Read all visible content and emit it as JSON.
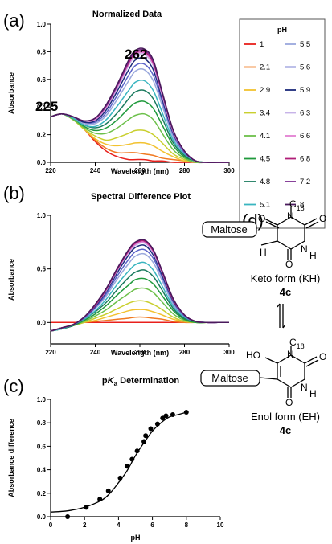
{
  "panels": {
    "a": "(a)",
    "b": "(b)",
    "c": "(c)",
    "d": "(d)"
  },
  "chart_data": [
    {
      "type": "line",
      "title": "Normalized Data",
      "xlabel": "Wavelength (nm)",
      "ylabel": "Absorbance",
      "xlim": [
        220,
        300
      ],
      "ylim": [
        0,
        1.0
      ],
      "xticks": [
        "220",
        "240",
        "260",
        "280",
        "300"
      ],
      "yticks": [
        "0.0",
        "0.2",
        "0.4",
        "0.6",
        "0.8",
        "1.0"
      ],
      "annotations": [
        {
          "text": "225",
          "color": "#e8201c"
        },
        {
          "text": "262",
          "color": "#8b3fbf"
        }
      ],
      "legend_title": "pH",
      "legend_placement": "right",
      "wavelength_nm": [
        220,
        225,
        230,
        235,
        240,
        245,
        250,
        255,
        258,
        262,
        266,
        270,
        275,
        280,
        285,
        290,
        295,
        300
      ],
      "series": [
        {
          "name": "1",
          "color": "#e8201c",
          "values": [
            0.33,
            0.35,
            0.31,
            0.24,
            0.15,
            0.08,
            0.04,
            0.02,
            0.02,
            0.02,
            0.01,
            0.01,
            0.0,
            0.0,
            0.0,
            0.0,
            0.0,
            0.0
          ]
        },
        {
          "name": "2.1",
          "color": "#f07a22",
          "values": [
            0.33,
            0.35,
            0.31,
            0.24,
            0.16,
            0.1,
            0.07,
            0.07,
            0.07,
            0.06,
            0.05,
            0.03,
            0.02,
            0.01,
            0.0,
            0.0,
            0.0,
            0.0
          ]
        },
        {
          "name": "2.9",
          "color": "#f2c230",
          "values": [
            0.33,
            0.35,
            0.31,
            0.24,
            0.17,
            0.13,
            0.12,
            0.13,
            0.14,
            0.14,
            0.12,
            0.08,
            0.04,
            0.01,
            0.0,
            0.0,
            0.0,
            0.0
          ]
        },
        {
          "name": "3.4",
          "color": "#c9cf2e",
          "values": [
            0.33,
            0.35,
            0.31,
            0.24,
            0.19,
            0.16,
            0.18,
            0.21,
            0.23,
            0.23,
            0.2,
            0.14,
            0.06,
            0.02,
            0.0,
            0.0,
            0.0,
            0.0
          ]
        },
        {
          "name": "4.1",
          "color": "#6cc04a",
          "values": [
            0.33,
            0.35,
            0.31,
            0.25,
            0.21,
            0.21,
            0.25,
            0.31,
            0.34,
            0.35,
            0.31,
            0.21,
            0.09,
            0.03,
            0.0,
            0.0,
            0.0,
            0.0
          ]
        },
        {
          "name": "4.5",
          "color": "#1f9a3c",
          "values": [
            0.33,
            0.35,
            0.32,
            0.26,
            0.23,
            0.25,
            0.31,
            0.39,
            0.43,
            0.44,
            0.39,
            0.27,
            0.12,
            0.04,
            0.01,
            0.0,
            0.0,
            0.0
          ]
        },
        {
          "name": "4.8",
          "color": "#1a7a5e",
          "values": [
            0.33,
            0.35,
            0.32,
            0.27,
            0.25,
            0.28,
            0.36,
            0.46,
            0.51,
            0.52,
            0.46,
            0.32,
            0.14,
            0.05,
            0.01,
            0.0,
            0.0,
            0.0
          ]
        },
        {
          "name": "5.1",
          "color": "#3ab5c0",
          "values": [
            0.33,
            0.35,
            0.32,
            0.27,
            0.26,
            0.31,
            0.41,
            0.52,
            0.58,
            0.59,
            0.52,
            0.36,
            0.16,
            0.06,
            0.01,
            0.0,
            0.0,
            0.0
          ]
        },
        {
          "name": "5.5",
          "color": "#9aa8dc",
          "values": [
            0.33,
            0.35,
            0.33,
            0.28,
            0.28,
            0.34,
            0.46,
            0.59,
            0.66,
            0.67,
            0.59,
            0.41,
            0.18,
            0.07,
            0.01,
            0.0,
            0.0,
            0.0
          ]
        },
        {
          "name": "5.6",
          "color": "#5b63c9",
          "values": [
            0.33,
            0.35,
            0.33,
            0.29,
            0.29,
            0.36,
            0.49,
            0.63,
            0.7,
            0.71,
            0.63,
            0.44,
            0.2,
            0.07,
            0.01,
            0.0,
            0.0,
            0.0
          ]
        },
        {
          "name": "5.9",
          "color": "#1c2a7a",
          "values": [
            0.33,
            0.35,
            0.33,
            0.29,
            0.3,
            0.38,
            0.52,
            0.67,
            0.74,
            0.75,
            0.67,
            0.46,
            0.21,
            0.08,
            0.01,
            0.0,
            0.0,
            0.0
          ]
        },
        {
          "name": "6.3",
          "color": "#c7b3e8",
          "values": [
            0.33,
            0.35,
            0.33,
            0.3,
            0.31,
            0.4,
            0.54,
            0.7,
            0.77,
            0.78,
            0.7,
            0.48,
            0.22,
            0.08,
            0.01,
            0.0,
            0.0,
            0.0
          ]
        },
        {
          "name": "6.6",
          "color": "#e27fd2",
          "values": [
            0.33,
            0.35,
            0.33,
            0.3,
            0.31,
            0.4,
            0.55,
            0.71,
            0.78,
            0.79,
            0.71,
            0.49,
            0.22,
            0.08,
            0.01,
            0.0,
            0.0,
            0.0
          ]
        },
        {
          "name": "6.8",
          "color": "#b01e78",
          "values": [
            0.33,
            0.35,
            0.33,
            0.3,
            0.32,
            0.41,
            0.56,
            0.72,
            0.79,
            0.8,
            0.72,
            0.5,
            0.23,
            0.08,
            0.01,
            0.0,
            0.0,
            0.0
          ]
        },
        {
          "name": "7.2",
          "color": "#7b2d8e",
          "values": [
            0.33,
            0.35,
            0.33,
            0.3,
            0.32,
            0.41,
            0.56,
            0.73,
            0.8,
            0.81,
            0.73,
            0.5,
            0.23,
            0.08,
            0.01,
            0.0,
            0.0,
            0.0
          ]
        },
        {
          "name": "8",
          "color": "#4a1a5c",
          "values": [
            0.33,
            0.35,
            0.33,
            0.3,
            0.32,
            0.42,
            0.57,
            0.74,
            0.81,
            0.82,
            0.74,
            0.51,
            0.23,
            0.08,
            0.01,
            0.0,
            0.0,
            0.0
          ]
        }
      ]
    },
    {
      "type": "line",
      "title": "Spectral Difference Plot",
      "xlabel": "Wavelength (nm)",
      "ylabel": "Absorbance",
      "xlim": [
        220,
        300
      ],
      "ylim": [
        -0.2,
        1.0
      ],
      "xticks": [
        "220",
        "240",
        "260",
        "280",
        "300"
      ],
      "yticks": [
        "0.0",
        "0.5",
        "1.0"
      ],
      "wavelength_nm": [
        220,
        225,
        230,
        235,
        240,
        245,
        250,
        255,
        258,
        262,
        266,
        270,
        275,
        280,
        285,
        290,
        295,
        300
      ],
      "series": [
        {
          "name": "1",
          "color": "#e8201c",
          "values": [
            0.0,
            0.0,
            0.0,
            0.0,
            0.0,
            0.0,
            0.0,
            0.0,
            0.0,
            0.0,
            0.0,
            0.0,
            0.0,
            0.0,
            0.0,
            0.0,
            0.0,
            0.0
          ]
        },
        {
          "name": "2.1",
          "color": "#f07a22",
          "values": [
            -0.08,
            -0.05,
            -0.02,
            0.0,
            0.01,
            0.02,
            0.03,
            0.04,
            0.05,
            0.05,
            0.04,
            0.03,
            0.01,
            0.0,
            0.0,
            0.0,
            0.0,
            0.0
          ]
        },
        {
          "name": "2.9",
          "color": "#f2c230",
          "values": [
            -0.08,
            -0.06,
            -0.03,
            0.0,
            0.02,
            0.05,
            0.08,
            0.11,
            0.12,
            0.12,
            0.1,
            0.07,
            0.03,
            0.01,
            0.0,
            0.0,
            0.0,
            0.0
          ]
        },
        {
          "name": "3.4",
          "color": "#c9cf2e",
          "values": [
            -0.08,
            -0.06,
            -0.03,
            0.0,
            0.04,
            0.08,
            0.13,
            0.18,
            0.2,
            0.2,
            0.17,
            0.12,
            0.05,
            0.01,
            0.0,
            0.0,
            0.0,
            0.0
          ]
        },
        {
          "name": "4.1",
          "color": "#6cc04a",
          "values": [
            -0.08,
            -0.06,
            -0.03,
            0.01,
            0.06,
            0.12,
            0.2,
            0.27,
            0.31,
            0.32,
            0.28,
            0.19,
            0.08,
            0.02,
            0.0,
            0.0,
            0.0,
            0.0
          ]
        },
        {
          "name": "4.5",
          "color": "#1f9a3c",
          "values": [
            -0.08,
            -0.06,
            -0.03,
            0.02,
            0.08,
            0.16,
            0.26,
            0.35,
            0.4,
            0.41,
            0.36,
            0.25,
            0.11,
            0.03,
            0.0,
            0.0,
            0.0,
            0.0
          ]
        },
        {
          "name": "4.8",
          "color": "#1a7a5e",
          "values": [
            -0.08,
            -0.06,
            -0.03,
            0.03,
            0.1,
            0.19,
            0.31,
            0.42,
            0.47,
            0.49,
            0.43,
            0.3,
            0.13,
            0.04,
            0.01,
            0.0,
            0.0,
            0.0
          ]
        },
        {
          "name": "5.1",
          "color": "#3ab5c0",
          "values": [
            -0.08,
            -0.06,
            -0.02,
            0.03,
            0.11,
            0.22,
            0.36,
            0.48,
            0.54,
            0.56,
            0.49,
            0.34,
            0.15,
            0.05,
            0.01,
            0.0,
            0.0,
            0.0
          ]
        },
        {
          "name": "5.5",
          "color": "#9aa8dc",
          "values": [
            -0.08,
            -0.05,
            -0.02,
            0.04,
            0.13,
            0.25,
            0.41,
            0.55,
            0.62,
            0.64,
            0.56,
            0.39,
            0.17,
            0.06,
            0.01,
            0.0,
            0.0,
            0.0
          ]
        },
        {
          "name": "5.6",
          "color": "#5b63c9",
          "values": [
            -0.08,
            -0.05,
            -0.02,
            0.04,
            0.14,
            0.27,
            0.44,
            0.59,
            0.66,
            0.68,
            0.6,
            0.42,
            0.19,
            0.06,
            0.01,
            0.0,
            0.0,
            0.0
          ]
        },
        {
          "name": "5.9",
          "color": "#1c2a7a",
          "values": [
            -0.08,
            -0.05,
            -0.02,
            0.05,
            0.15,
            0.29,
            0.47,
            0.63,
            0.7,
            0.72,
            0.63,
            0.44,
            0.2,
            0.07,
            0.01,
            0.0,
            0.0,
            0.0
          ]
        },
        {
          "name": "6.3",
          "color": "#c7b3e8",
          "values": [
            -0.08,
            -0.05,
            -0.02,
            0.05,
            0.16,
            0.3,
            0.49,
            0.65,
            0.72,
            0.74,
            0.65,
            0.46,
            0.21,
            0.07,
            0.01,
            0.0,
            0.0,
            0.0
          ]
        },
        {
          "name": "6.6",
          "color": "#e27fd2",
          "values": [
            -0.08,
            -0.05,
            -0.02,
            0.05,
            0.16,
            0.31,
            0.5,
            0.66,
            0.73,
            0.75,
            0.66,
            0.47,
            0.21,
            0.07,
            0.01,
            0.0,
            0.0,
            0.0
          ]
        },
        {
          "name": "6.8",
          "color": "#b01e78",
          "values": [
            -0.08,
            -0.05,
            -0.02,
            0.05,
            0.16,
            0.31,
            0.5,
            0.67,
            0.74,
            0.76,
            0.67,
            0.47,
            0.21,
            0.07,
            0.01,
            0.0,
            0.0,
            0.0
          ]
        },
        {
          "name": "7.2",
          "color": "#7b2d8e",
          "values": [
            -0.08,
            -0.05,
            -0.02,
            0.05,
            0.17,
            0.32,
            0.51,
            0.68,
            0.75,
            0.77,
            0.68,
            0.48,
            0.22,
            0.07,
            0.01,
            0.0,
            0.0,
            0.0
          ]
        },
        {
          "name": "8",
          "color": "#4a1a5c",
          "values": [
            -0.08,
            -0.05,
            -0.02,
            0.05,
            0.17,
            0.32,
            0.51,
            0.68,
            0.75,
            0.77,
            0.68,
            0.48,
            0.22,
            0.07,
            0.01,
            0.0,
            0.0,
            0.0
          ]
        }
      ]
    },
    {
      "type": "scatter",
      "title_pre": "p",
      "title_italic": "K",
      "title_sub": "a",
      "title_post": " Determination",
      "xlabel": "pH",
      "ylabel": "Absorbance difference",
      "xlim": [
        0,
        10
      ],
      "ylim": [
        0,
        1.0
      ],
      "xticks": [
        "0",
        "2",
        "4",
        "6",
        "8",
        "10"
      ],
      "yticks": [
        "0.0",
        "0.2",
        "0.4",
        "0.6",
        "0.8",
        "1.0"
      ],
      "points": [
        {
          "x": 1.0,
          "y": 0.0
        },
        {
          "x": 2.1,
          "y": 0.08
        },
        {
          "x": 2.9,
          "y": 0.15
        },
        {
          "x": 3.4,
          "y": 0.22
        },
        {
          "x": 4.1,
          "y": 0.33
        },
        {
          "x": 4.5,
          "y": 0.43
        },
        {
          "x": 4.8,
          "y": 0.49
        },
        {
          "x": 5.1,
          "y": 0.56
        },
        {
          "x": 5.5,
          "y": 0.64
        },
        {
          "x": 5.6,
          "y": 0.69
        },
        {
          "x": 5.9,
          "y": 0.75
        },
        {
          "x": 6.3,
          "y": 0.79
        },
        {
          "x": 6.6,
          "y": 0.84
        },
        {
          "x": 6.8,
          "y": 0.86
        },
        {
          "x": 7.2,
          "y": 0.87
        },
        {
          "x": 8.0,
          "y": 0.89
        }
      ],
      "fit": {
        "pH": [
          0,
          1,
          2,
          3,
          3.5,
          4,
          4.5,
          5,
          5.5,
          6,
          6.5,
          7,
          7.5,
          8
        ],
        "values": [
          0.04,
          0.05,
          0.08,
          0.14,
          0.2,
          0.29,
          0.39,
          0.52,
          0.63,
          0.73,
          0.8,
          0.85,
          0.87,
          0.89
        ]
      }
    }
  ],
  "structure": {
    "keto": {
      "subst": "C",
      "subst_sub": "18",
      "sugar": "Maltose",
      "atoms": {
        "o1": "O",
        "o2": "O",
        "o3": "O",
        "n1": "N",
        "n3": "N",
        "h_n": "H",
        "h_c": "H"
      },
      "caption": "Keto form (KH)",
      "compound": "4c"
    },
    "enol": {
      "subst": "C",
      "subst_sub": "18",
      "sugar": "Maltose",
      "atoms": {
        "ho": "HO",
        "o2": "O",
        "o3": "O",
        "n1": "N",
        "n3": "N",
        "h_n": "H"
      },
      "caption": "Enol form (EH)",
      "compound": "4c"
    }
  }
}
